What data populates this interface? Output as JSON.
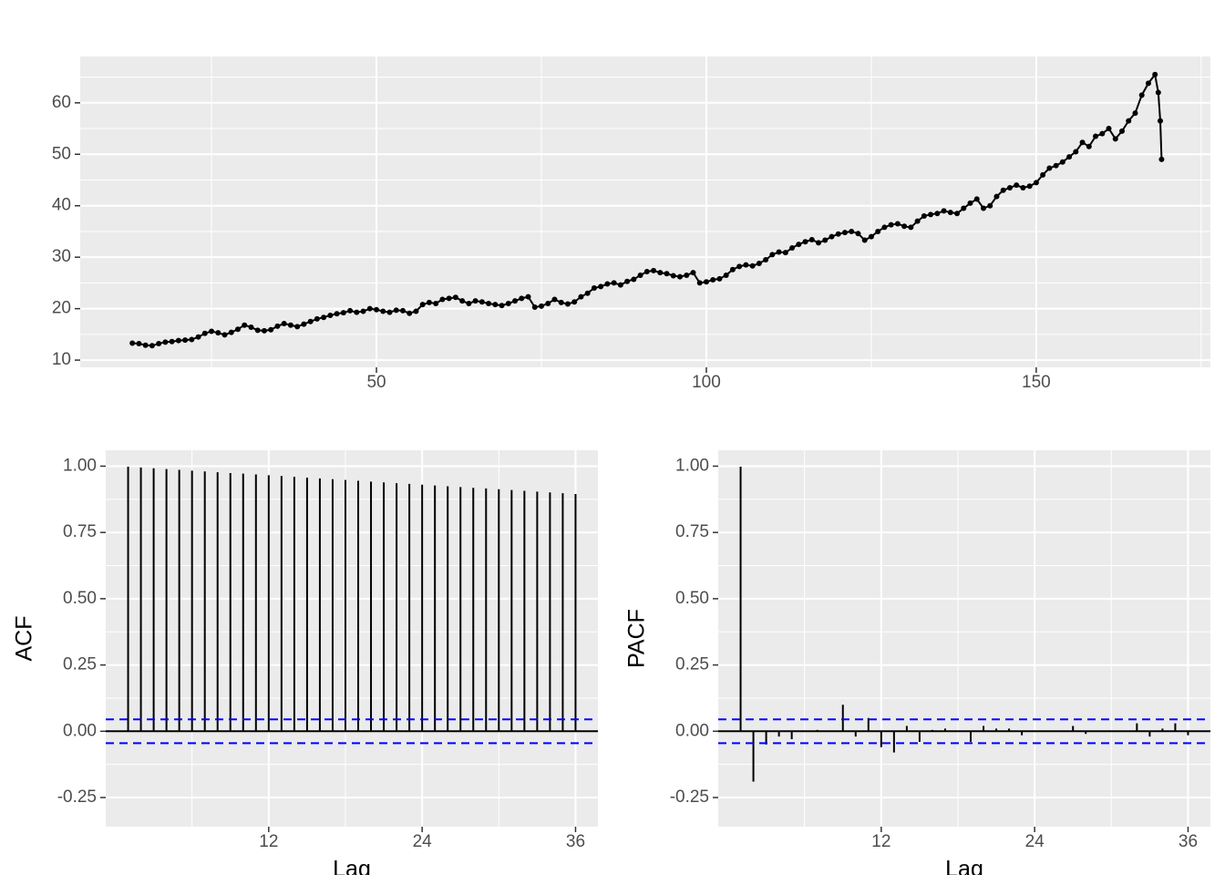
{
  "chart_data": [
    {
      "type": "line",
      "color": "#000000",
      "grid": true,
      "x": [
        13,
        14,
        15,
        16,
        17,
        18,
        19,
        20,
        21,
        22,
        23,
        24,
        25,
        26,
        27,
        28,
        29,
        30,
        31,
        32,
        33,
        34,
        35,
        36,
        37,
        38,
        39,
        40,
        41,
        42,
        43,
        44,
        45,
        46,
        47,
        48,
        49,
        50,
        51,
        52,
        53,
        54,
        55,
        56,
        57,
        58,
        59,
        60,
        61,
        62,
        63,
        64,
        65,
        66,
        67,
        68,
        69,
        70,
        71,
        72,
        73,
        74,
        75,
        76,
        77,
        78,
        79,
        80,
        81,
        82,
        83,
        84,
        85,
        86,
        87,
        88,
        89,
        90,
        91,
        92,
        93,
        94,
        95,
        96,
        97,
        98,
        99,
        100,
        101,
        102,
        103,
        104,
        105,
        106,
        107,
        108,
        109,
        110,
        111,
        112,
        113,
        114,
        115,
        116,
        117,
        118,
        119,
        120,
        121,
        122,
        123,
        124,
        125,
        126,
        127,
        128,
        129,
        130,
        131,
        132,
        133,
        134,
        135,
        136,
        137,
        138,
        139,
        140,
        141,
        142,
        143,
        144,
        145,
        146,
        147,
        148,
        149,
        150,
        151,
        152,
        153,
        154,
        155,
        156,
        157,
        158,
        159,
        160,
        161,
        162,
        163,
        164,
        165,
        166,
        167,
        168,
        168.5,
        168.8,
        169
      ],
      "values": [
        13.3,
        13.2,
        12.9,
        12.8,
        13.2,
        13.5,
        13.6,
        13.8,
        13.9,
        14.0,
        14.5,
        15.2,
        15.6,
        15.3,
        14.9,
        15.4,
        16.0,
        16.8,
        16.4,
        15.8,
        15.7,
        15.9,
        16.6,
        17.1,
        16.8,
        16.5,
        17.0,
        17.5,
        18.0,
        18.3,
        18.7,
        19.0,
        19.2,
        19.6,
        19.3,
        19.5,
        20.0,
        19.8,
        19.5,
        19.3,
        19.7,
        19.6,
        19.1,
        19.5,
        20.8,
        21.2,
        21.0,
        21.8,
        22.0,
        22.2,
        21.5,
        21.0,
        21.5,
        21.3,
        21.0,
        20.8,
        20.6,
        21.0,
        21.5,
        22.0,
        22.3,
        20.3,
        20.5,
        21.0,
        21.8,
        21.2,
        20.9,
        21.3,
        22.3,
        23.0,
        24.0,
        24.3,
        24.8,
        25.0,
        24.6,
        25.3,
        25.7,
        26.5,
        27.2,
        27.4,
        27.0,
        26.8,
        26.4,
        26.2,
        26.5,
        27.0,
        25.0,
        25.2,
        25.6,
        25.8,
        26.5,
        27.6,
        28.2,
        28.5,
        28.3,
        28.8,
        29.5,
        30.5,
        31.0,
        30.9,
        31.8,
        32.5,
        33.0,
        33.4,
        32.8,
        33.3,
        34.0,
        34.5,
        34.8,
        35.0,
        34.6,
        33.3,
        34.0,
        35.0,
        35.8,
        36.3,
        36.5,
        36.0,
        35.8,
        37.0,
        38.0,
        38.3,
        38.5,
        39.0,
        38.7,
        38.5,
        39.5,
        40.5,
        41.3,
        39.5,
        40.0,
        41.8,
        43.0,
        43.5,
        44.0,
        43.5,
        43.8,
        44.5,
        46.0,
        47.3,
        47.8,
        48.5,
        49.5,
        50.5,
        52.3,
        51.5,
        53.5,
        54.0,
        55.0,
        53.0,
        54.5,
        56.5,
        58.0,
        61.5,
        63.8,
        65.5,
        62.0,
        56.5,
        49.0
      ],
      "xlim": [
        5.1,
        176.4
      ],
      "ylim": [
        8.6,
        69.0
      ],
      "xticks": [
        50,
        100,
        150
      ],
      "yticks": [
        10,
        20,
        30,
        40,
        50,
        60
      ]
    },
    {
      "type": "acf",
      "color": "#000000",
      "grid": true,
      "y_label": "ACF",
      "x_label": "Lag",
      "x": [
        1,
        2,
        3,
        4,
        5,
        6,
        7,
        8,
        9,
        10,
        11,
        12,
        13,
        14,
        15,
        16,
        17,
        18,
        19,
        20,
        21,
        22,
        23,
        24,
        25,
        26,
        27,
        28,
        29,
        30,
        31,
        32,
        33,
        34,
        35,
        36
      ],
      "values": [
        0.998,
        0.995,
        0.992,
        0.989,
        0.986,
        0.983,
        0.98,
        0.977,
        0.974,
        0.972,
        0.969,
        0.966,
        0.963,
        0.96,
        0.957,
        0.954,
        0.951,
        0.948,
        0.945,
        0.942,
        0.939,
        0.936,
        0.933,
        0.93,
        0.927,
        0.924,
        0.921,
        0.918,
        0.916,
        0.913,
        0.91,
        0.907,
        0.904,
        0.901,
        0.898,
        0.895
      ],
      "conf_limits": [
        -0.045,
        0.045
      ],
      "conf_color": "#0000ff",
      "xlim": [
        -0.75,
        37.75
      ],
      "ylim": [
        -0.36,
        1.06
      ],
      "xticks": [
        12,
        24,
        36
      ],
      "yticks": [
        {
          "value": -0.25,
          "label": "-0.25"
        },
        {
          "value": 0,
          "label": "0.00"
        },
        0.25,
        {
          "value": 0.5,
          "label": "0.50"
        },
        0.75,
        {
          "value": 1,
          "label": "1.00"
        }
      ]
    },
    {
      "type": "acf",
      "color": "#000000",
      "grid": true,
      "y_label": "PACF",
      "x_label": "Lag",
      "x": [
        1,
        2,
        3,
        4,
        5,
        6,
        7,
        8,
        9,
        10,
        11,
        12,
        13,
        14,
        15,
        16,
        17,
        18,
        19,
        20,
        21,
        22,
        23,
        24,
        25,
        26,
        27,
        28,
        29,
        30,
        31,
        32,
        33,
        34,
        35,
        36
      ],
      "values": [
        0.998,
        -0.19,
        -0.05,
        -0.02,
        -0.03,
        0.0,
        0.005,
        0.0,
        0.1,
        -0.02,
        0.05,
        -0.06,
        -0.08,
        0.02,
        -0.04,
        0.005,
        0.01,
        0.0,
        -0.04,
        0.02,
        0.01,
        0.01,
        -0.015,
        0.0,
        0.0,
        0.0,
        0.02,
        -0.01,
        0.0,
        0.0,
        0.0,
        0.03,
        -0.02,
        0.01,
        0.03,
        -0.015
      ],
      "conf_limits": [
        -0.045,
        0.045
      ],
      "conf_color": "#0000ff",
      "xlim": [
        -0.75,
        37.75
      ],
      "ylim": [
        -0.36,
        1.06
      ],
      "xticks": [
        12,
        24,
        36
      ],
      "yticks": [
        {
          "value": -0.25,
          "label": "-0.25"
        },
        {
          "value": 0,
          "label": "0.00"
        },
        0.25,
        {
          "value": 0.5,
          "label": "0.50"
        },
        0.75,
        {
          "value": 1,
          "label": "1.00"
        }
      ]
    }
  ]
}
